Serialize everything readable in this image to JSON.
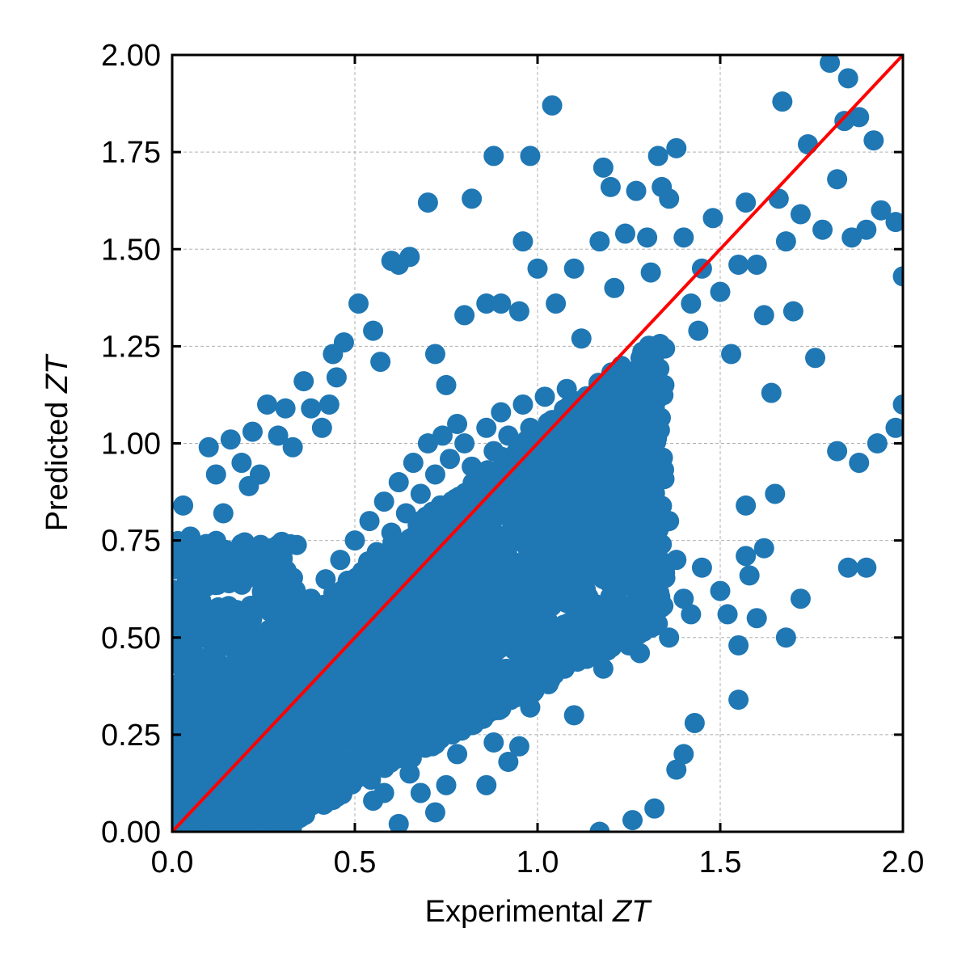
{
  "chart_data": {
    "type": "scatter",
    "xlabel": "Experimental",
    "xlabel_var": "ZT",
    "ylabel": "Predicted",
    "ylabel_var": "ZT",
    "xlim": [
      0.0,
      2.0
    ],
    "ylim": [
      0.0,
      2.0
    ],
    "xticks": [
      "0.0",
      "0.5",
      "1.0",
      "1.5",
      "2.0"
    ],
    "yticks": [
      "0.00",
      "0.25",
      "0.50",
      "0.75",
      "1.00",
      "1.25",
      "1.50",
      "1.75",
      "2.00"
    ],
    "grid": true,
    "reference_line": {
      "type": "y=x",
      "color": "#ff0000"
    },
    "series": [
      {
        "color": "#1f77b4",
        "points": [
          [
            0.03,
            0.84
          ],
          [
            0.05,
            0.76
          ],
          [
            0.07,
            0.7
          ],
          [
            0.1,
            0.99
          ],
          [
            0.12,
            0.92
          ],
          [
            0.14,
            0.82
          ],
          [
            0.16,
            1.01
          ],
          [
            0.19,
            0.95
          ],
          [
            0.21,
            0.89
          ],
          [
            0.22,
            1.03
          ],
          [
            0.24,
            0.92
          ],
          [
            0.26,
            1.1
          ],
          [
            0.29,
            1.02
          ],
          [
            0.31,
            1.09
          ],
          [
            0.33,
            0.99
          ],
          [
            0.36,
            1.16
          ],
          [
            0.38,
            1.09
          ],
          [
            0.41,
            1.04
          ],
          [
            0.43,
            1.1
          ],
          [
            0.44,
            1.23
          ],
          [
            0.45,
            1.17
          ],
          [
            0.47,
            1.26
          ],
          [
            0.51,
            1.36
          ],
          [
            0.55,
            1.29
          ],
          [
            0.57,
            1.21
          ],
          [
            0.6,
            1.47
          ],
          [
            0.62,
            1.46
          ],
          [
            0.65,
            1.48
          ],
          [
            0.7,
            1.62
          ],
          [
            0.72,
            1.23
          ],
          [
            0.75,
            1.15
          ],
          [
            0.8,
            1.33
          ],
          [
            0.82,
            1.63
          ],
          [
            0.86,
            1.36
          ],
          [
            0.88,
            1.74
          ],
          [
            0.9,
            1.36
          ],
          [
            0.95,
            1.34
          ],
          [
            0.96,
            1.52
          ],
          [
            0.98,
            1.74
          ],
          [
            1.0,
            1.45
          ],
          [
            1.04,
            1.87
          ],
          [
            1.05,
            1.36
          ],
          [
            1.1,
            1.45
          ],
          [
            1.12,
            1.27
          ],
          [
            1.17,
            1.52
          ],
          [
            1.18,
            1.71
          ],
          [
            1.2,
            1.66
          ],
          [
            1.21,
            1.4
          ],
          [
            1.24,
            1.54
          ],
          [
            1.27,
            1.65
          ],
          [
            1.3,
            1.53
          ],
          [
            1.31,
            1.44
          ],
          [
            1.33,
            1.74
          ],
          [
            1.34,
            1.66
          ],
          [
            1.36,
            1.63
          ],
          [
            1.38,
            1.76
          ],
          [
            1.4,
            1.53
          ],
          [
            1.42,
            1.36
          ],
          [
            1.44,
            1.29
          ],
          [
            1.45,
            1.45
          ],
          [
            1.48,
            1.58
          ],
          [
            1.5,
            1.39
          ],
          [
            1.53,
            1.23
          ],
          [
            1.55,
            1.46
          ],
          [
            1.57,
            1.62
          ],
          [
            1.6,
            1.46
          ],
          [
            1.62,
            1.33
          ],
          [
            1.64,
            1.13
          ],
          [
            1.66,
            1.63
          ],
          [
            1.67,
            1.88
          ],
          [
            1.68,
            1.52
          ],
          [
            1.7,
            1.34
          ],
          [
            1.72,
            1.59
          ],
          [
            1.74,
            1.77
          ],
          [
            1.76,
            1.22
          ],
          [
            1.78,
            1.55
          ],
          [
            1.8,
            1.98
          ],
          [
            1.82,
            1.68
          ],
          [
            1.84,
            1.83
          ],
          [
            1.85,
            1.94
          ],
          [
            1.86,
            1.53
          ],
          [
            1.88,
            1.84
          ],
          [
            1.9,
            1.55
          ],
          [
            1.92,
            1.78
          ],
          [
            1.94,
            1.6
          ],
          [
            1.98,
            1.57
          ],
          [
            2.0,
            1.43
          ],
          [
            0.03,
            0.68
          ],
          [
            0.08,
            0.64
          ],
          [
            0.12,
            0.55
          ],
          [
            0.18,
            0.5
          ],
          [
            0.22,
            0.42
          ],
          [
            0.28,
            0.4
          ],
          [
            0.33,
            0.37
          ],
          [
            0.38,
            0.3
          ],
          [
            0.42,
            0.25
          ],
          [
            0.45,
            0.16
          ],
          [
            0.48,
            0.12
          ],
          [
            0.52,
            0.18
          ],
          [
            0.55,
            0.08
          ],
          [
            0.58,
            0.1
          ],
          [
            0.62,
            0.02
          ],
          [
            0.65,
            0.15
          ],
          [
            0.68,
            0.1
          ],
          [
            0.72,
            0.05
          ],
          [
            0.75,
            0.12
          ],
          [
            0.78,
            0.2
          ],
          [
            0.82,
            0.28
          ],
          [
            0.86,
            0.12
          ],
          [
            0.88,
            0.23
          ],
          [
            0.92,
            0.18
          ],
          [
            0.95,
            0.22
          ],
          [
            0.98,
            0.32
          ],
          [
            1.03,
            0.38
          ],
          [
            1.06,
            0.45
          ],
          [
            1.1,
            0.3
          ],
          [
            1.14,
            0.48
          ],
          [
            1.18,
            0.42
          ],
          [
            1.22,
            0.5
          ],
          [
            1.25,
            0.48
          ],
          [
            1.28,
            0.46
          ],
          [
            1.3,
            0.55
          ],
          [
            1.32,
            0.6
          ],
          [
            1.36,
            0.5
          ],
          [
            1.4,
            0.6
          ],
          [
            1.42,
            0.56
          ],
          [
            1.45,
            0.68
          ],
          [
            1.5,
            0.62
          ],
          [
            1.52,
            0.56
          ],
          [
            1.55,
            0.48
          ],
          [
            1.55,
            0.34
          ],
          [
            1.57,
            0.71
          ],
          [
            1.58,
            0.66
          ],
          [
            1.6,
            0.55
          ],
          [
            1.62,
            0.73
          ],
          [
            1.68,
            0.5
          ],
          [
            1.72,
            0.6
          ],
          [
            1.85,
            0.68
          ],
          [
            1.9,
            0.68
          ],
          [
            1.32,
            0.06
          ],
          [
            1.38,
            0.16
          ],
          [
            1.4,
            0.2
          ],
          [
            1.43,
            0.28
          ],
          [
            1.26,
            0.03
          ],
          [
            1.17,
            0.0
          ],
          [
            1.57,
            0.84
          ],
          [
            1.65,
            0.87
          ],
          [
            1.82,
            0.98
          ],
          [
            1.88,
            0.95
          ],
          [
            1.93,
            1.0
          ],
          [
            1.98,
            1.04
          ],
          [
            2.0,
            1.1
          ],
          [
            0.02,
            0.05
          ],
          [
            0.04,
            0.12
          ],
          [
            0.06,
            0.18
          ],
          [
            0.08,
            0.08
          ],
          [
            0.1,
            0.22
          ],
          [
            0.12,
            0.15
          ],
          [
            0.14,
            0.28
          ],
          [
            0.16,
            0.2
          ],
          [
            0.18,
            0.32
          ],
          [
            0.2,
            0.26
          ],
          [
            0.22,
            0.38
          ],
          [
            0.24,
            0.3
          ],
          [
            0.26,
            0.44
          ],
          [
            0.28,
            0.36
          ],
          [
            0.3,
            0.5
          ],
          [
            0.32,
            0.42
          ],
          [
            0.34,
            0.55
          ],
          [
            0.36,
            0.47
          ],
          [
            0.38,
            0.6
          ],
          [
            0.4,
            0.52
          ],
          [
            0.42,
            0.65
          ],
          [
            0.44,
            0.57
          ],
          [
            0.46,
            0.7
          ],
          [
            0.48,
            0.62
          ],
          [
            0.5,
            0.75
          ],
          [
            0.52,
            0.67
          ],
          [
            0.54,
            0.8
          ],
          [
            0.56,
            0.72
          ],
          [
            0.58,
            0.85
          ],
          [
            0.6,
            0.77
          ],
          [
            0.62,
            0.9
          ],
          [
            0.64,
            0.82
          ],
          [
            0.66,
            0.95
          ],
          [
            0.68,
            0.87
          ],
          [
            0.7,
            1.0
          ],
          [
            0.72,
            0.92
          ],
          [
            0.74,
            1.02
          ],
          [
            0.76,
            0.96
          ],
          [
            0.78,
            1.05
          ],
          [
            0.8,
            1.0
          ],
          [
            0.82,
            0.94
          ],
          [
            0.84,
            0.88
          ],
          [
            0.86,
            1.04
          ],
          [
            0.88,
            0.98
          ],
          [
            0.9,
            1.08
          ],
          [
            0.92,
            1.02
          ],
          [
            0.94,
            0.96
          ],
          [
            0.96,
            1.1
          ],
          [
            0.98,
            1.04
          ],
          [
            1.0,
            0.98
          ],
          [
            1.02,
            1.12
          ],
          [
            1.04,
            1.06
          ],
          [
            1.06,
            1.0
          ],
          [
            1.08,
            1.14
          ],
          [
            1.1,
            1.08
          ],
          [
            1.12,
            0.94
          ],
          [
            1.14,
            1.05
          ],
          [
            1.16,
            0.98
          ],
          [
            1.18,
            0.9
          ],
          [
            1.2,
            1.02
          ],
          [
            1.22,
            0.88
          ],
          [
            1.24,
            0.95
          ],
          [
            1.26,
            0.82
          ],
          [
            1.28,
            0.92
          ],
          [
            1.3,
            0.78
          ],
          [
            1.32,
            0.86
          ],
          [
            1.34,
            0.74
          ],
          [
            1.36,
            0.8
          ],
          [
            1.38,
            0.7
          ]
        ]
      }
    ],
    "dense_region": {
      "x_max_at_y0": 0.3,
      "note": ""
    }
  }
}
